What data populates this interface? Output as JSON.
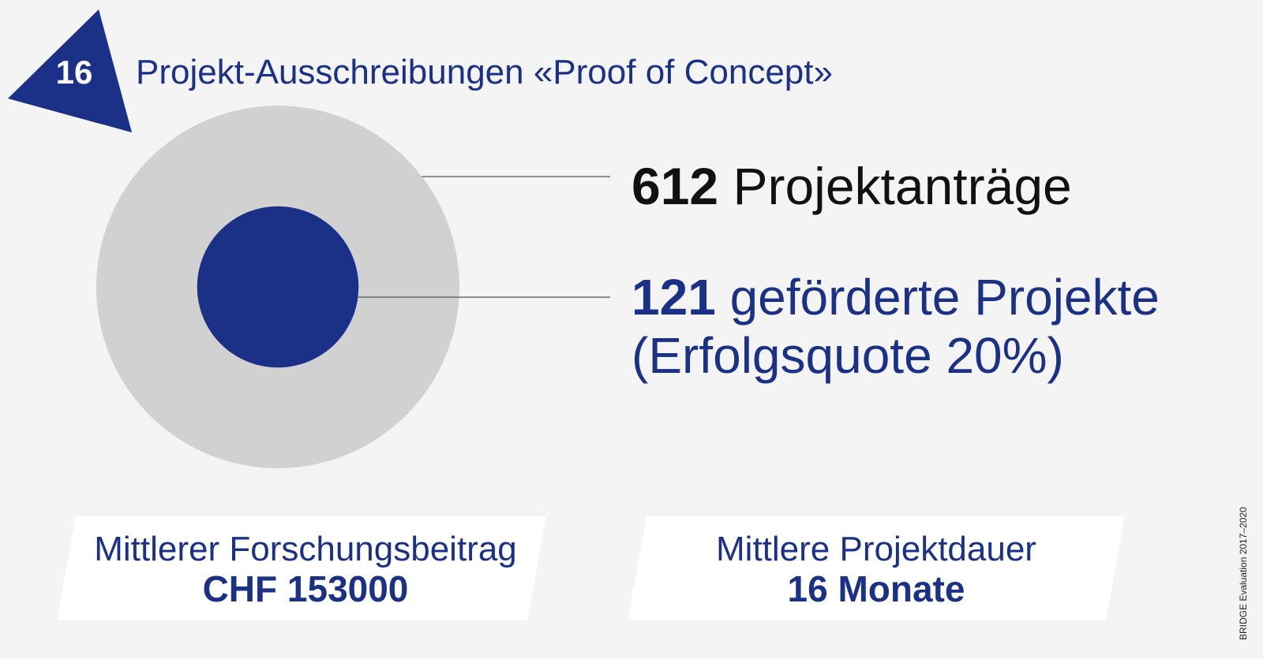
{
  "badge": {
    "number": "16"
  },
  "title": "Projekt-Ausschreibungen «Proof of Concept»",
  "stats": {
    "total": {
      "number": "612",
      "label": "Projektanträge"
    },
    "funded": {
      "number": "121",
      "label": "geförderte Projekte",
      "line2": "(Erfolgsquote 20%)"
    }
  },
  "boxes": [
    {
      "label": "Mittlerer Forschungsbeitrag",
      "value": "CHF 153000"
    },
    {
      "label": "Mittlere Projektdauer",
      "value": "16 Monate"
    }
  ],
  "credit": "BRIDGE Evaluation 2017–2020",
  "colors": {
    "navy": "#1b3188",
    "outer_circle": "#d1d1d1",
    "background": "#f4f4f4",
    "box": "#ffffff"
  },
  "chart_data": {
    "type": "proportional-circles",
    "title": "Projekt-Ausschreibungen «Proof of Concept»",
    "series": [
      {
        "name": "Projektanträge",
        "value": 612
      },
      {
        "name": "geförderte Projekte",
        "value": 121
      }
    ],
    "success_rate_percent": 20
  }
}
